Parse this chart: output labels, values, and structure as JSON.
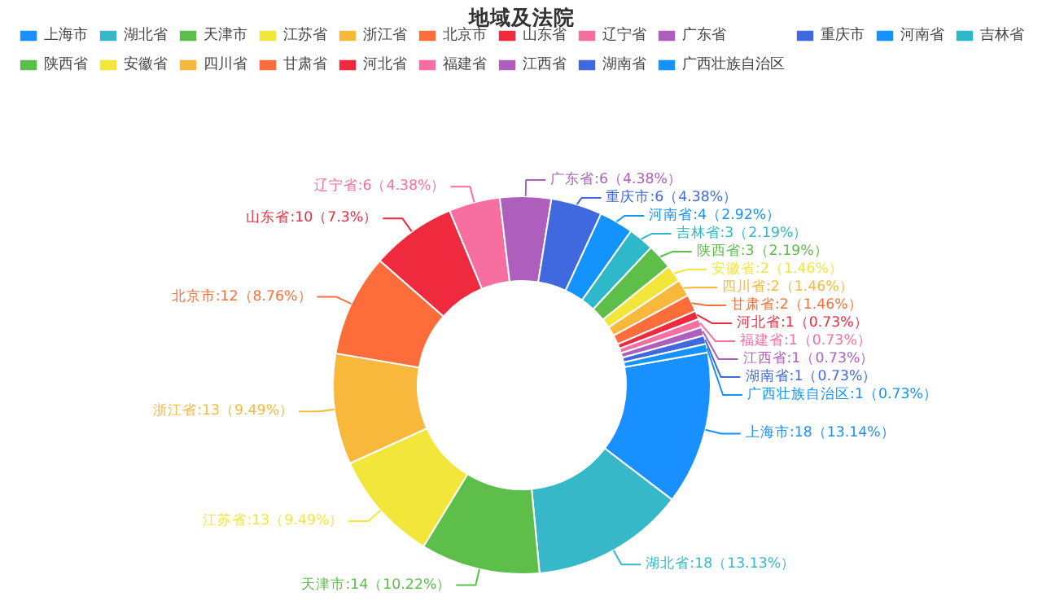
{
  "chart_data": {
    "type": "donut",
    "title": "地域及法院",
    "legend": "top",
    "categories": [
      "上海市",
      "湖北省",
      "天津市",
      "江苏省",
      "浙江省",
      "北京市",
      "山东省",
      "辽宁省",
      "广东省",
      "重庆市",
      "河南省",
      "吉林省",
      "陕西省",
      "安徽省",
      "四川省",
      "甘肃省",
      "河北省",
      "福建省",
      "江西省",
      "湖南省",
      "广西壮族自治区"
    ],
    "values": [
      18,
      18,
      14,
      13,
      13,
      12,
      10,
      6,
      6,
      6,
      4,
      3,
      3,
      2,
      2,
      2,
      1,
      1,
      1,
      1,
      1
    ],
    "value_labels": [
      "上海市:18（13.14%）",
      "湖北省:18（13.13%）",
      "天津市:14（10.22%）",
      "江苏省:13（9.49%）",
      "浙江省:13（9.49%）",
      "北京市:12（8.76%）",
      "山东省:10（7.3%）",
      "辽宁省:6（4.38%）",
      "广东省:6（4.38%）",
      "重庆市:6（4.38%）",
      "河南省:4（2.92%）",
      "吉林省:3（2.19%）",
      "陕西省:3（2.19%）",
      "安徽省:2（1.46%）",
      "四川省:2（1.46%）",
      "甘肃省:2（1.46%）",
      "河北省:1（0.73%）",
      "福建省:1（0.73%）",
      "江西省:1（0.73%）",
      "湖南省:1（0.73%）",
      "广西壮族自治区:1（0.73%）"
    ],
    "colors": [
      "#1890ff",
      "#36b8c8",
      "#5dbe4a",
      "#f2e63a",
      "#f7b83b",
      "#fc6d3a",
      "#f02a3e",
      "#f76fa0",
      "#ae5fbd",
      "#4069e0",
      "#1493fd",
      "#2fb8c9",
      "#5dbe4a",
      "#f2e63a",
      "#f7b83b",
      "#fc6d3a",
      "#f02a3e",
      "#f76fa0",
      "#ae5fbd",
      "#4069e0",
      "#1493fd"
    ]
  }
}
